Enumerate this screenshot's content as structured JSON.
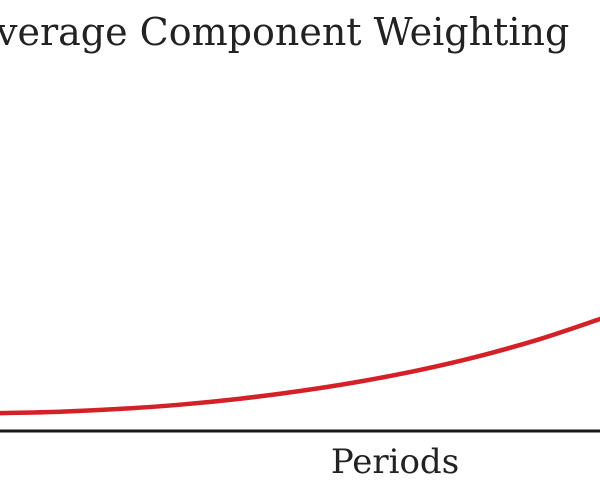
{
  "chart_data": {
    "type": "line",
    "title": "verage Component Weighting",
    "xlabel": "Periods",
    "ylabel": "",
    "grid": false,
    "legend": "none",
    "series_color": "#d42027",
    "axis_color": "#1a1a1a",
    "text_color": "#222222",
    "xlim": [
      0,
      1
    ],
    "ylim": [
      0,
      1
    ],
    "x": [
      0,
      0.1,
      0.2,
      0.3,
      0.4,
      0.5,
      0.6,
      0.7,
      0.8,
      0.9,
      1.0
    ],
    "series": [
      {
        "values": [
          0.051,
          0.055,
          0.063,
          0.075,
          0.092,
          0.114,
          0.141,
          0.174,
          0.214,
          0.262,
          0.319
        ]
      }
    ]
  }
}
